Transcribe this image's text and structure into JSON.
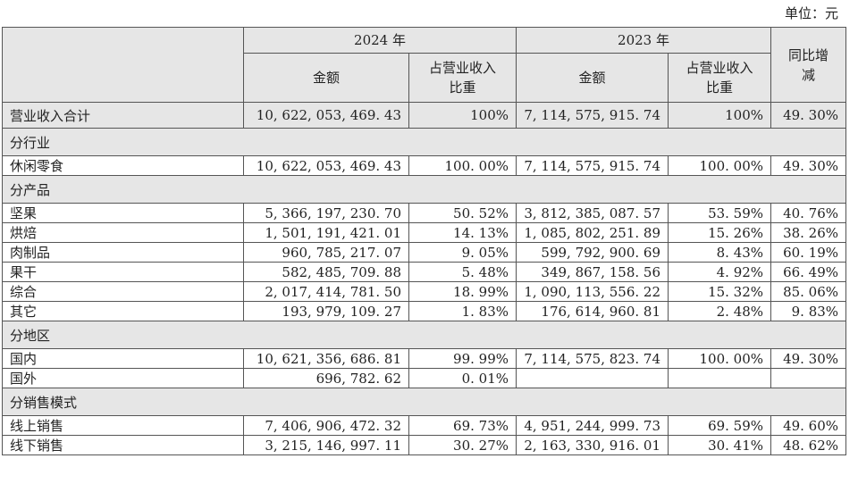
{
  "unit_label": "单位：元",
  "header": {
    "year1": "2024 年",
    "year2": "2023 年",
    "amount": "金额",
    "ratio_line1": "占营业收入",
    "ratio_line2": "比重",
    "yoy_line1": "同比增",
    "yoy_line2": "减"
  },
  "total": {
    "label": "营业收入合计",
    "amt_2024": "10, 622, 053, 469. 43",
    "pct_2024": "100%",
    "amt_2023": "7, 114, 575, 915. 74",
    "pct_2023": "100%",
    "yoy": "49. 30%"
  },
  "sections": [
    {
      "title": "分行业",
      "rows": [
        {
          "label": "休闲零食",
          "amt_2024": "10, 622, 053, 469. 43",
          "pct_2024": "100. 00%",
          "amt_2023": "7, 114, 575, 915. 74",
          "pct_2023": "100. 00%",
          "yoy": "49. 30%"
        }
      ]
    },
    {
      "title": "分产品",
      "rows": [
        {
          "label": "坚果",
          "amt_2024": "5, 366, 197, 230. 70",
          "pct_2024": "50. 52%",
          "amt_2023": "3, 812, 385, 087. 57",
          "pct_2023": "53. 59%",
          "yoy": "40. 76%"
        },
        {
          "label": "烘焙",
          "amt_2024": "1, 501, 191, 421. 01",
          "pct_2024": "14. 13%",
          "amt_2023": "1, 085, 802, 251. 89",
          "pct_2023": "15. 26%",
          "yoy": "38. 26%"
        },
        {
          "label": "肉制品",
          "amt_2024": "960, 785, 217. 07",
          "pct_2024": "9. 05%",
          "amt_2023": "599, 792, 900. 69",
          "pct_2023": "8. 43%",
          "yoy": "60. 19%"
        },
        {
          "label": "果干",
          "amt_2024": "582, 485, 709. 88",
          "pct_2024": "5. 48%",
          "amt_2023": "349, 867, 158. 56",
          "pct_2023": "4. 92%",
          "yoy": "66. 49%"
        },
        {
          "label": "综合",
          "amt_2024": "2, 017, 414, 781. 50",
          "pct_2024": "18. 99%",
          "amt_2023": "1, 090, 113, 556. 22",
          "pct_2023": "15. 32%",
          "yoy": "85. 06%"
        },
        {
          "label": "其它",
          "amt_2024": "193, 979, 109. 27",
          "pct_2024": "1. 83%",
          "amt_2023": "176, 614, 960. 81",
          "pct_2023": "2. 48%",
          "yoy": "9. 83%"
        }
      ]
    },
    {
      "title": "分地区",
      "rows": [
        {
          "label": "国内",
          "amt_2024": "10, 621, 356, 686. 81",
          "pct_2024": "99. 99%",
          "amt_2023": "7, 114, 575, 823. 74",
          "pct_2023": "100. 00%",
          "yoy": "49. 30%"
        },
        {
          "label": "国外",
          "amt_2024": "696, 782. 62",
          "pct_2024": "0. 01%",
          "amt_2023": "",
          "pct_2023": "",
          "yoy": ""
        }
      ]
    },
    {
      "title": "分销售模式",
      "rows": [
        {
          "label": "线上销售",
          "amt_2024": "7, 406, 906, 472. 32",
          "pct_2024": "69. 73%",
          "amt_2023": "4, 951, 244, 999. 73",
          "pct_2023": "69. 59%",
          "yoy": "49. 60%"
        },
        {
          "label": "线下销售",
          "amt_2024": "3, 215, 146, 997. 11",
          "pct_2024": "30. 27%",
          "amt_2023": "2, 163, 330, 916. 01",
          "pct_2023": "30. 41%",
          "yoy": "48. 62%"
        }
      ]
    }
  ]
}
